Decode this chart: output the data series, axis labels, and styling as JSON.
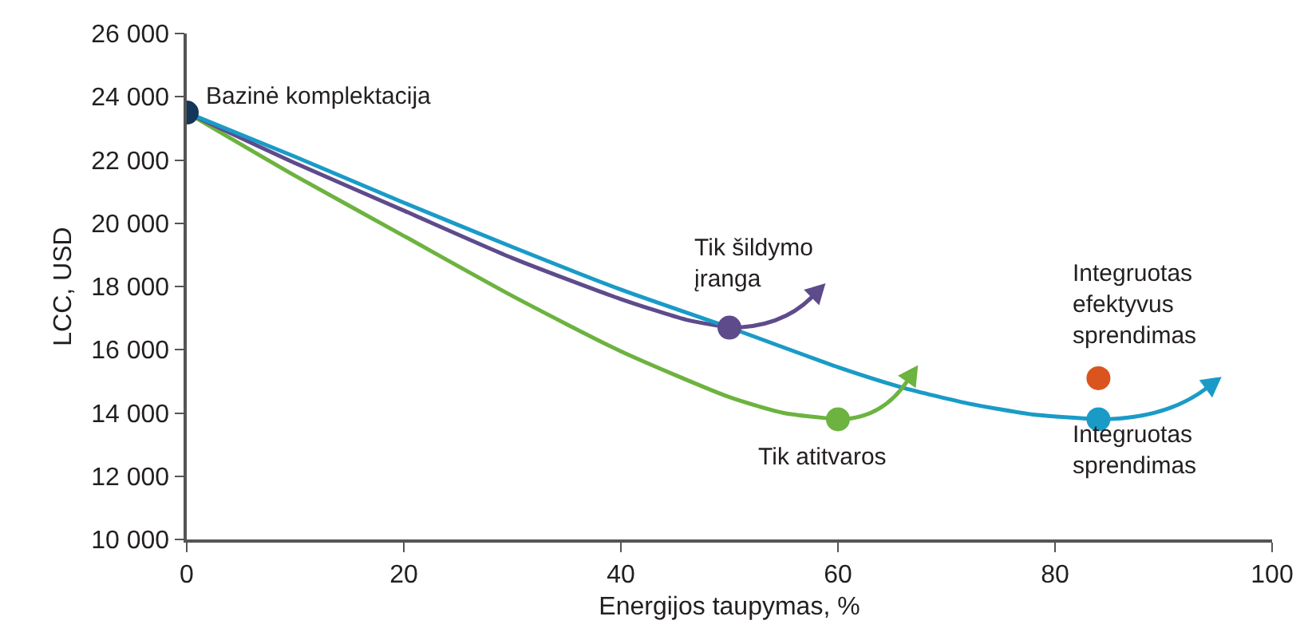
{
  "chart_data": {
    "type": "line",
    "xlabel": "Energijos taupymas, %",
    "ylabel": "LCC, USD",
    "xlim": [
      0,
      100
    ],
    "xticks": [
      0,
      20,
      40,
      60,
      80,
      100
    ],
    "ylim": [
      10000,
      26000
    ],
    "yticks": [
      {
        "value": 10000,
        "label": "10 000"
      },
      {
        "value": 12000,
        "label": "12 000"
      },
      {
        "value": 14000,
        "label": "14 000"
      },
      {
        "value": 16000,
        "label": "16 000"
      },
      {
        "value": 18000,
        "label": "18 000"
      },
      {
        "value": 20000,
        "label": "20 000"
      },
      {
        "value": 22000,
        "label": "22 000"
      },
      {
        "value": 24000,
        "label": "24 000"
      },
      {
        "value": 26000,
        "label": "26 000"
      }
    ],
    "line_style": "solid",
    "series": [
      {
        "color": "#6cb33f",
        "x": [
          0,
          10,
          20,
          30,
          40,
          50,
          55,
          60
        ],
        "values": [
          23500,
          21500,
          19600,
          17700,
          15950,
          14500,
          14000,
          13800
        ]
      },
      {
        "color": "#5e4b8b",
        "x": [
          0,
          10,
          20,
          30,
          40,
          46,
          50
        ],
        "values": [
          23500,
          21900,
          20400,
          18900,
          17600,
          16950,
          16700
        ]
      },
      {
        "color": "#1a9bc7",
        "x": [
          0,
          10,
          20,
          30,
          40,
          50,
          60,
          66,
          72,
          78,
          84
        ],
        "values": [
          23500,
          22100,
          20650,
          19250,
          17900,
          16700,
          15450,
          14800,
          14300,
          13950,
          13800
        ]
      },
      {
        "type": "scatter",
        "marker": "circle",
        "x": [
          0,
          50,
          60,
          84,
          84
        ],
        "values": [
          23500,
          16700,
          13800,
          13800,
          15100
        ],
        "colors": [
          "#14365a",
          "#5e4b8b",
          "#6cb33f",
          "#1a9bc7",
          "#d9541e"
        ]
      }
    ],
    "annotations": [
      {
        "text": "Bazinė komplektacija",
        "x": 0,
        "y": 23500
      },
      {
        "text": "Tik šildymo\nįranga",
        "x": 50,
        "y": 16700
      },
      {
        "text": "Tik atitvaros",
        "x": 60,
        "y": 13800
      },
      {
        "text": "Integruotas\nefektyvus\nsprendimas",
        "x": 84,
        "y": 15100
      },
      {
        "text": "Integruotas\nsprendimas",
        "x": 84,
        "y": 13800
      }
    ]
  }
}
